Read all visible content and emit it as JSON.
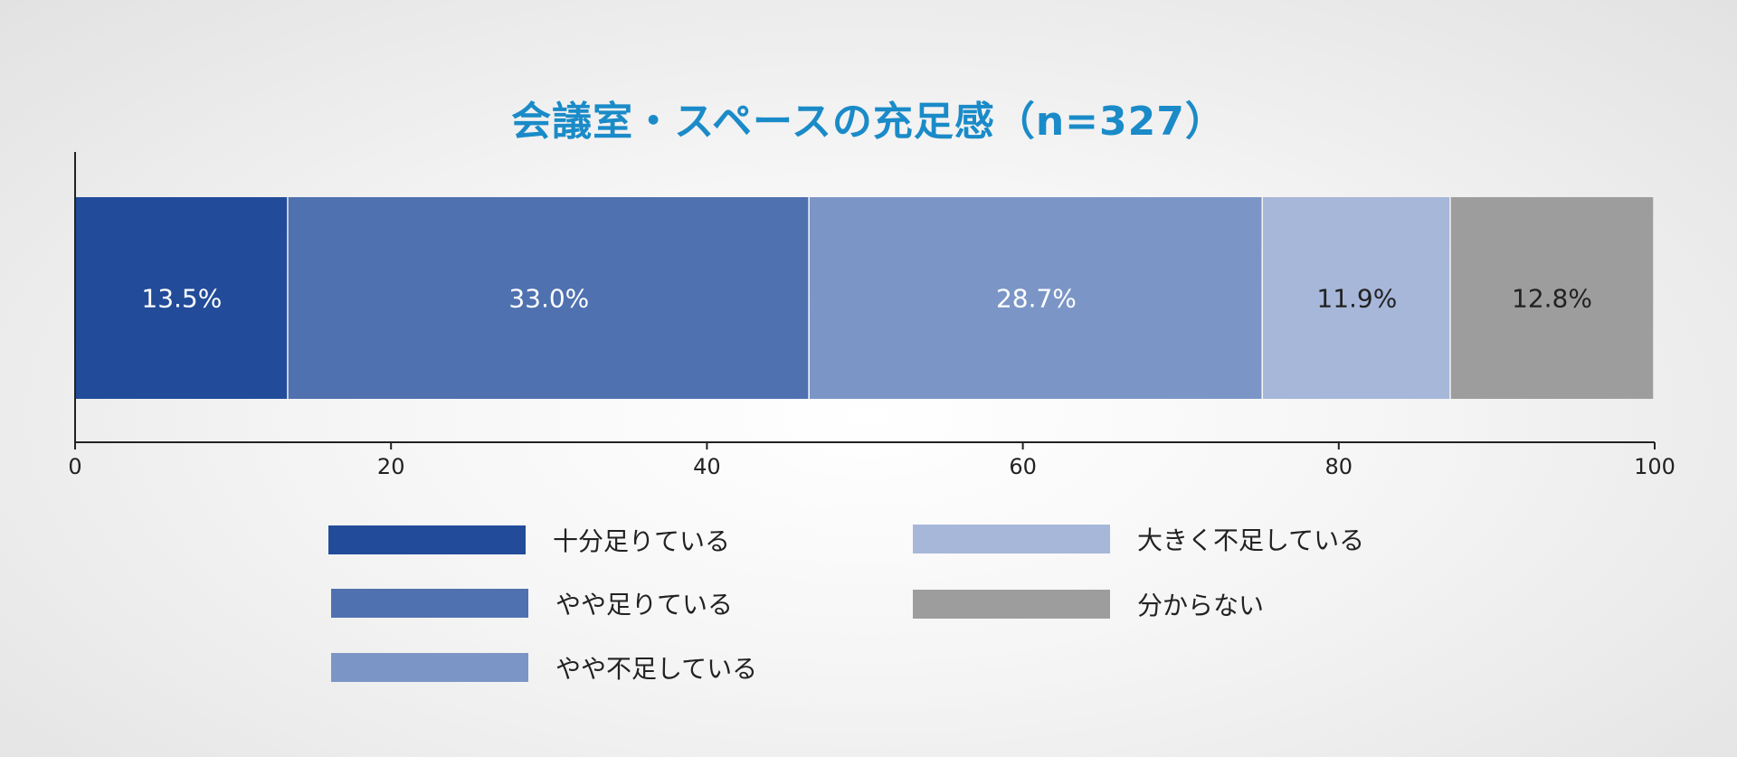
{
  "chart_data": {
    "type": "bar",
    "orientation": "horizontal",
    "stacked": true,
    "title": "会議室・スペースの充足感（n=327）",
    "categories": [
      ""
    ],
    "series": [
      {
        "name": "十分足りている",
        "values": [
          13.5
        ],
        "label": "13.5%",
        "color": "#224c99",
        "label_color": "#ffffff"
      },
      {
        "name": "やや足りている",
        "values": [
          33.0
        ],
        "label": "33.0%",
        "color": "#4f71b0",
        "label_color": "#ffffff"
      },
      {
        "name": "やや不足している",
        "values": [
          28.7
        ],
        "label": "28.7%",
        "color": "#7b96c6",
        "label_color": "#ffffff"
      },
      {
        "name": "大きく不足している",
        "values": [
          11.9
        ],
        "label": "11.9%",
        "color": "#a7b7da",
        "label_color": "#222222"
      },
      {
        "name": "分からない",
        "values": [
          12.8
        ],
        "label": "12.8%",
        "color": "#9d9d9d",
        "label_color": "#222222"
      }
    ],
    "xlim": [
      0,
      100
    ],
    "xticks": [
      0,
      20,
      40,
      60,
      80,
      100
    ],
    "xtick_labels": [
      "0",
      "20",
      "40",
      "60",
      "80",
      "100"
    ],
    "grid": false,
    "legend_position": "bottom"
  }
}
